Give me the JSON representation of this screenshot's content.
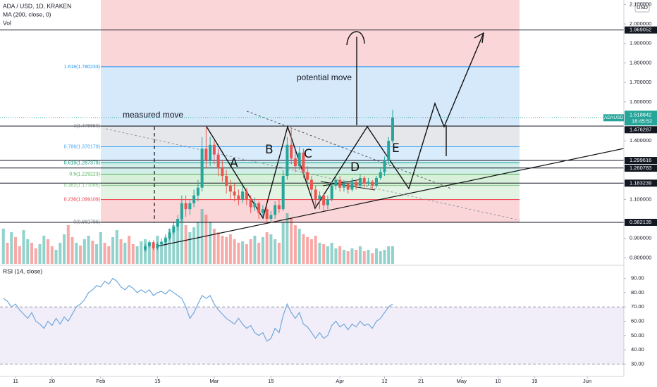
{
  "header": {
    "symbol": "ADA / USD, 1D, KRAKEN",
    "indicators": [
      "MA (200, close, 0)",
      "Vol"
    ]
  },
  "chart_data": [
    {
      "type": "candlestick",
      "x": [
        7,
        8,
        9,
        10,
        11,
        12,
        13,
        14,
        15,
        16,
        17,
        18,
        19,
        20,
        21,
        22,
        23,
        24,
        25,
        26,
        27,
        28,
        29,
        30,
        31,
        32,
        33,
        34,
        35,
        36,
        37,
        38,
        39,
        40,
        41,
        42,
        43,
        44,
        45,
        46,
        47,
        48,
        49,
        50,
        51,
        52,
        53,
        54,
        55,
        56,
        57,
        58,
        59,
        60,
        61,
        62,
        63,
        64,
        65,
        66,
        67,
        68,
        69,
        70,
        71,
        72,
        73,
        74,
        75,
        76,
        77,
        78,
        79,
        80,
        81,
        82,
        83,
        84,
        85,
        86,
        87,
        88,
        89,
        90,
        91,
        92,
        93,
        94,
        95,
        96,
        97,
        98,
        99,
        100,
        101,
        102,
        103
      ],
      "open": [
        null,
        null,
        null,
        null,
        null,
        null,
        null,
        null,
        null,
        null,
        null,
        null,
        null,
        null,
        null,
        null,
        null,
        null,
        null,
        null,
        null,
        null,
        null,
        null,
        null,
        null,
        null,
        null,
        null,
        null,
        null,
        null,
        null,
        null,
        null,
        0.84,
        0.86,
        0.88,
        0.85,
        0.87,
        0.88,
        0.9,
        0.93,
        0.96,
        1.0,
        1.08,
        1.05,
        1.08,
        1.12,
        1.16,
        1.36,
        1.3,
        1.38,
        1.33,
        1.26,
        1.22,
        1.17,
        1.14,
        1.12,
        1.1,
        1.14,
        1.1,
        1.06,
        1.08,
        1.03,
        1.05,
        1.0,
        1.02,
        1.07,
        1.05,
        1.22,
        1.38,
        1.31,
        1.27,
        1.34,
        1.24,
        1.2,
        1.15,
        1.1,
        1.12,
        1.07,
        1.1,
        1.17,
        1.2,
        1.16,
        1.18,
        1.15,
        1.19,
        1.17,
        1.21,
        1.18,
        1.19,
        1.17,
        1.21,
        1.24,
        1.3,
        1.4
      ],
      "high": [
        null,
        null,
        null,
        null,
        null,
        null,
        null,
        null,
        null,
        null,
        null,
        null,
        null,
        null,
        null,
        null,
        null,
        null,
        null,
        null,
        null,
        null,
        null,
        null,
        null,
        null,
        null,
        null,
        null,
        null,
        null,
        null,
        null,
        null,
        null,
        0.87,
        0.89,
        0.89,
        0.88,
        0.9,
        0.92,
        0.95,
        0.98,
        1.02,
        1.12,
        1.12,
        1.1,
        1.15,
        1.2,
        1.42,
        1.47,
        1.42,
        1.4,
        1.36,
        1.3,
        1.25,
        1.2,
        1.18,
        1.15,
        1.17,
        1.16,
        1.12,
        1.11,
        1.09,
        1.07,
        1.06,
        1.04,
        1.09,
        1.1,
        1.25,
        1.42,
        1.46,
        1.35,
        1.37,
        1.36,
        1.27,
        1.22,
        1.17,
        1.14,
        1.13,
        1.12,
        1.19,
        1.23,
        1.22,
        1.2,
        1.19,
        1.21,
        1.2,
        1.23,
        1.22,
        1.21,
        1.2,
        1.22,
        1.26,
        1.32,
        1.42,
        1.56
      ],
      "low": [
        null,
        null,
        null,
        null,
        null,
        null,
        null,
        null,
        null,
        null,
        null,
        null,
        null,
        null,
        null,
        null,
        null,
        null,
        null,
        null,
        null,
        null,
        null,
        null,
        null,
        null,
        null,
        null,
        null,
        null,
        null,
        null,
        null,
        null,
        null,
        0.83,
        0.85,
        0.84,
        0.84,
        0.86,
        0.87,
        0.89,
        0.92,
        0.94,
        0.98,
        1.01,
        1.02,
        1.06,
        1.09,
        1.14,
        1.26,
        1.27,
        1.28,
        1.22,
        1.19,
        1.13,
        1.1,
        1.09,
        1.07,
        1.08,
        1.07,
        1.03,
        1.04,
        1.0,
        1.01,
        0.98,
        0.98,
        1.0,
        1.03,
        1.04,
        1.2,
        1.28,
        1.24,
        1.25,
        1.21,
        1.18,
        1.12,
        1.06,
        1.05,
        1.04,
        1.05,
        1.09,
        1.15,
        1.14,
        1.14,
        1.13,
        1.14,
        1.15,
        1.16,
        1.16,
        1.17,
        1.15,
        1.16,
        1.2,
        1.22,
        1.28,
        1.39
      ],
      "close": [
        null,
        null,
        null,
        null,
        null,
        null,
        null,
        null,
        null,
        null,
        null,
        null,
        null,
        null,
        null,
        null,
        null,
        null,
        null,
        null,
        null,
        null,
        null,
        null,
        null,
        null,
        null,
        null,
        null,
        null,
        null,
        null,
        null,
        null,
        null,
        0.86,
        0.88,
        0.85,
        0.87,
        0.88,
        0.9,
        0.93,
        0.96,
        1.0,
        1.08,
        1.05,
        1.08,
        1.12,
        1.16,
        1.36,
        1.3,
        1.38,
        1.33,
        1.26,
        1.22,
        1.17,
        1.14,
        1.12,
        1.1,
        1.14,
        1.1,
        1.06,
        1.08,
        1.03,
        1.05,
        1.0,
        1.02,
        1.07,
        1.05,
        1.22,
        1.38,
        1.31,
        1.27,
        1.34,
        1.24,
        1.2,
        1.15,
        1.1,
        1.12,
        1.07,
        1.1,
        1.17,
        1.2,
        1.16,
        1.18,
        1.15,
        1.19,
        1.17,
        1.21,
        1.18,
        1.19,
        1.17,
        1.21,
        1.24,
        1.3,
        1.4,
        1.52
      ],
      "volume": [
        50,
        30,
        45,
        38,
        25,
        48,
        35,
        30,
        22,
        28,
        40,
        35,
        25,
        20,
        30,
        42,
        55,
        38,
        30,
        26,
        35,
        40,
        33,
        28,
        45,
        30,
        25,
        38,
        48,
        35,
        30,
        40,
        28,
        25,
        32,
        35,
        30,
        28,
        40,
        32,
        38,
        50,
        55,
        62,
        75,
        55,
        45,
        52,
        60,
        78,
        70,
        60,
        50,
        45,
        40,
        38,
        42,
        35,
        30,
        32,
        28,
        35,
        40,
        30,
        38,
        45,
        42,
        35,
        30,
        60,
        72,
        65,
        55,
        50,
        42,
        38,
        35,
        40,
        30,
        28,
        25,
        30,
        22,
        25,
        20,
        18,
        22,
        20,
        25,
        18,
        20,
        15,
        22,
        18,
        20,
        25,
        25
      ],
      "volume_up": [
        true,
        false,
        true,
        false,
        false,
        true,
        true,
        false,
        false,
        true,
        true,
        false,
        false,
        true,
        true,
        true,
        false,
        false,
        true,
        false,
        true,
        true,
        false,
        true,
        true,
        false,
        false,
        true,
        true,
        false,
        true,
        false,
        false,
        true,
        true,
        true,
        true,
        false,
        true,
        true,
        true,
        true,
        true,
        true,
        true,
        false,
        true,
        true,
        true,
        true,
        false,
        true,
        false,
        false,
        false,
        false,
        false,
        false,
        false,
        true,
        false,
        false,
        true,
        false,
        true,
        false,
        true,
        true,
        false,
        true,
        true,
        false,
        false,
        true,
        false,
        false,
        false,
        false,
        true,
        false,
        true,
        true,
        true,
        false,
        true,
        false,
        true,
        false,
        true,
        false,
        true,
        false,
        true,
        true,
        true,
        true,
        true
      ],
      "up_color": "#26a69a",
      "down_color": "#ef5350",
      "ylim": [
        0.769,
        2.123
      ],
      "volume_ylim": [
        0,
        375
      ],
      "xlim": [
        6.17,
        160.03
      ],
      "yticks": [
        {
          "value": 2.1,
          "label": "2.100000"
        },
        {
          "value": 2.0,
          "label": "2.000000"
        },
        {
          "value": 1.9,
          "label": "1.900000"
        },
        {
          "value": 1.8,
          "label": "1.800000"
        },
        {
          "value": 1.7,
          "label": "1.700000"
        },
        {
          "value": 1.6,
          "label": "1.600000"
        },
        {
          "value": 1.4,
          "label": "1.400000"
        },
        {
          "value": 1.1,
          "label": "1.100000"
        },
        {
          "value": 0.9,
          "label": "0.900000"
        },
        {
          "value": 0.8,
          "label": "0.800000"
        }
      ],
      "xticks": [
        {
          "value": 10,
          "label": "11"
        },
        {
          "value": 19,
          "label": "20"
        },
        {
          "value": 31,
          "label": "Feb"
        },
        {
          "value": 45,
          "label": "15"
        },
        {
          "value": 59,
          "label": "Mar"
        },
        {
          "value": 73,
          "label": "15"
        },
        {
          "value": 90,
          "label": "Apr"
        },
        {
          "value": 101,
          "label": "12"
        },
        {
          "value": 110,
          "label": "21"
        },
        {
          "value": 120,
          "label": "May"
        },
        {
          "value": 129,
          "label": "10"
        },
        {
          "value": 138,
          "label": "19"
        },
        {
          "value": 151,
          "label": "Jun"
        }
      ],
      "price_levels": [
        {
          "value": 1.969052,
          "label": "1.969052"
        },
        {
          "value": 1.476287,
          "label": "1.476287"
        },
        {
          "value": 1.299616,
          "label": "1.299616"
        },
        {
          "value": 1.260783,
          "label": "1.260783"
        },
        {
          "value": 1.183239,
          "label": "1.183239"
        },
        {
          "value": 0.982135,
          "label": "0.982135"
        }
      ],
      "last_price": {
        "symbol": "ADAUSD",
        "value": 1.518842,
        "label": "1.518842",
        "countdown": "18:45:52"
      },
      "currency": "USD",
      "fib": [
        {
          "value": 1.780233,
          "label": "1.618(1.780233)",
          "color": "#2196f3",
          "zone": "#d6e9fb"
        },
        {
          "value": 1.47565,
          "label": "1(1.475650)",
          "color": "#787b86",
          "zone": "#e6e7ea"
        },
        {
          "value": 1.370179,
          "label": "0.786(1.370179)",
          "color": "#42a5f5",
          "zone": "#d9ecfb"
        },
        {
          "value": 1.287379,
          "label": "0.618(1.287379)",
          "color": "#089981",
          "zone": "#d2eee8"
        },
        {
          "value": 1.229223,
          "label": "0.5(1.229223)",
          "color": "#4caf50",
          "zone": "#d8f0d9"
        },
        {
          "value": 1.171066,
          "label": "0.382(1.171066)",
          "color": "#81c784",
          "zone": "#e3f4e4"
        },
        {
          "value": 1.099109,
          "label": "0.236(1.099109)",
          "color": "#f23645",
          "zone": "#fbd6d9"
        },
        {
          "value": 0.982796,
          "label": "0(0.982796)",
          "color": "#787b86",
          "zone": null
        }
      ],
      "fib_top_zone": "#fbd6d9",
      "annotations": [
        "measured move",
        "potential move",
        "A",
        "B",
        "C",
        "D",
        "E"
      ]
    },
    {
      "type": "line",
      "title": "RSI (14, close)",
      "color": "#6fa8dc",
      "x": [
        7,
        8,
        9,
        10,
        11,
        12,
        13,
        14,
        15,
        16,
        17,
        18,
        19,
        20,
        21,
        22,
        23,
        24,
        25,
        26,
        27,
        28,
        29,
        30,
        31,
        32,
        33,
        34,
        35,
        36,
        37,
        38,
        39,
        40,
        41,
        42,
        43,
        44,
        45,
        46,
        47,
        48,
        49,
        50,
        51,
        52,
        53,
        54,
        55,
        56,
        57,
        58,
        59,
        60,
        61,
        62,
        63,
        64,
        65,
        66,
        67,
        68,
        69,
        70,
        71,
        72,
        73,
        74,
        75,
        76,
        77,
        78,
        79,
        80,
        81,
        82,
        83,
        84,
        85,
        86,
        87,
        88,
        89,
        90,
        91,
        92,
        93,
        94,
        95,
        96,
        97,
        98,
        99,
        100,
        101,
        102,
        103
      ],
      "values": [
        76,
        74,
        70,
        72,
        68,
        65,
        62,
        66,
        60,
        58,
        55,
        60,
        57,
        62,
        58,
        63,
        60,
        65,
        70,
        72,
        75,
        80,
        82,
        85,
        84,
        88,
        86,
        90,
        88,
        84,
        82,
        85,
        83,
        80,
        82,
        80,
        82,
        78,
        80,
        81,
        79,
        82,
        80,
        78,
        76,
        70,
        62,
        66,
        72,
        78,
        76,
        78,
        72,
        68,
        65,
        62,
        60,
        58,
        62,
        58,
        55,
        57,
        52,
        50,
        52,
        46,
        48,
        55,
        52,
        64,
        72,
        66,
        62,
        66,
        58,
        56,
        52,
        48,
        52,
        48,
        50,
        57,
        60,
        56,
        58,
        54,
        58,
        56,
        60,
        57,
        58,
        55,
        60,
        62,
        66,
        70,
        72
      ],
      "ylim": [
        21.3,
        98.7
      ],
      "band": [
        30,
        70
      ],
      "band_color": "#7e57c2",
      "yticks": [
        {
          "value": 90,
          "label": "90.00"
        },
        {
          "value": 80,
          "label": "80.00"
        },
        {
          "value": 70,
          "label": "70.00"
        },
        {
          "value": 60,
          "label": "60.00"
        },
        {
          "value": 50,
          "label": "50.00"
        },
        {
          "value": 40,
          "label": "40.00"
        },
        {
          "value": 30,
          "label": "30.00"
        }
      ]
    }
  ]
}
